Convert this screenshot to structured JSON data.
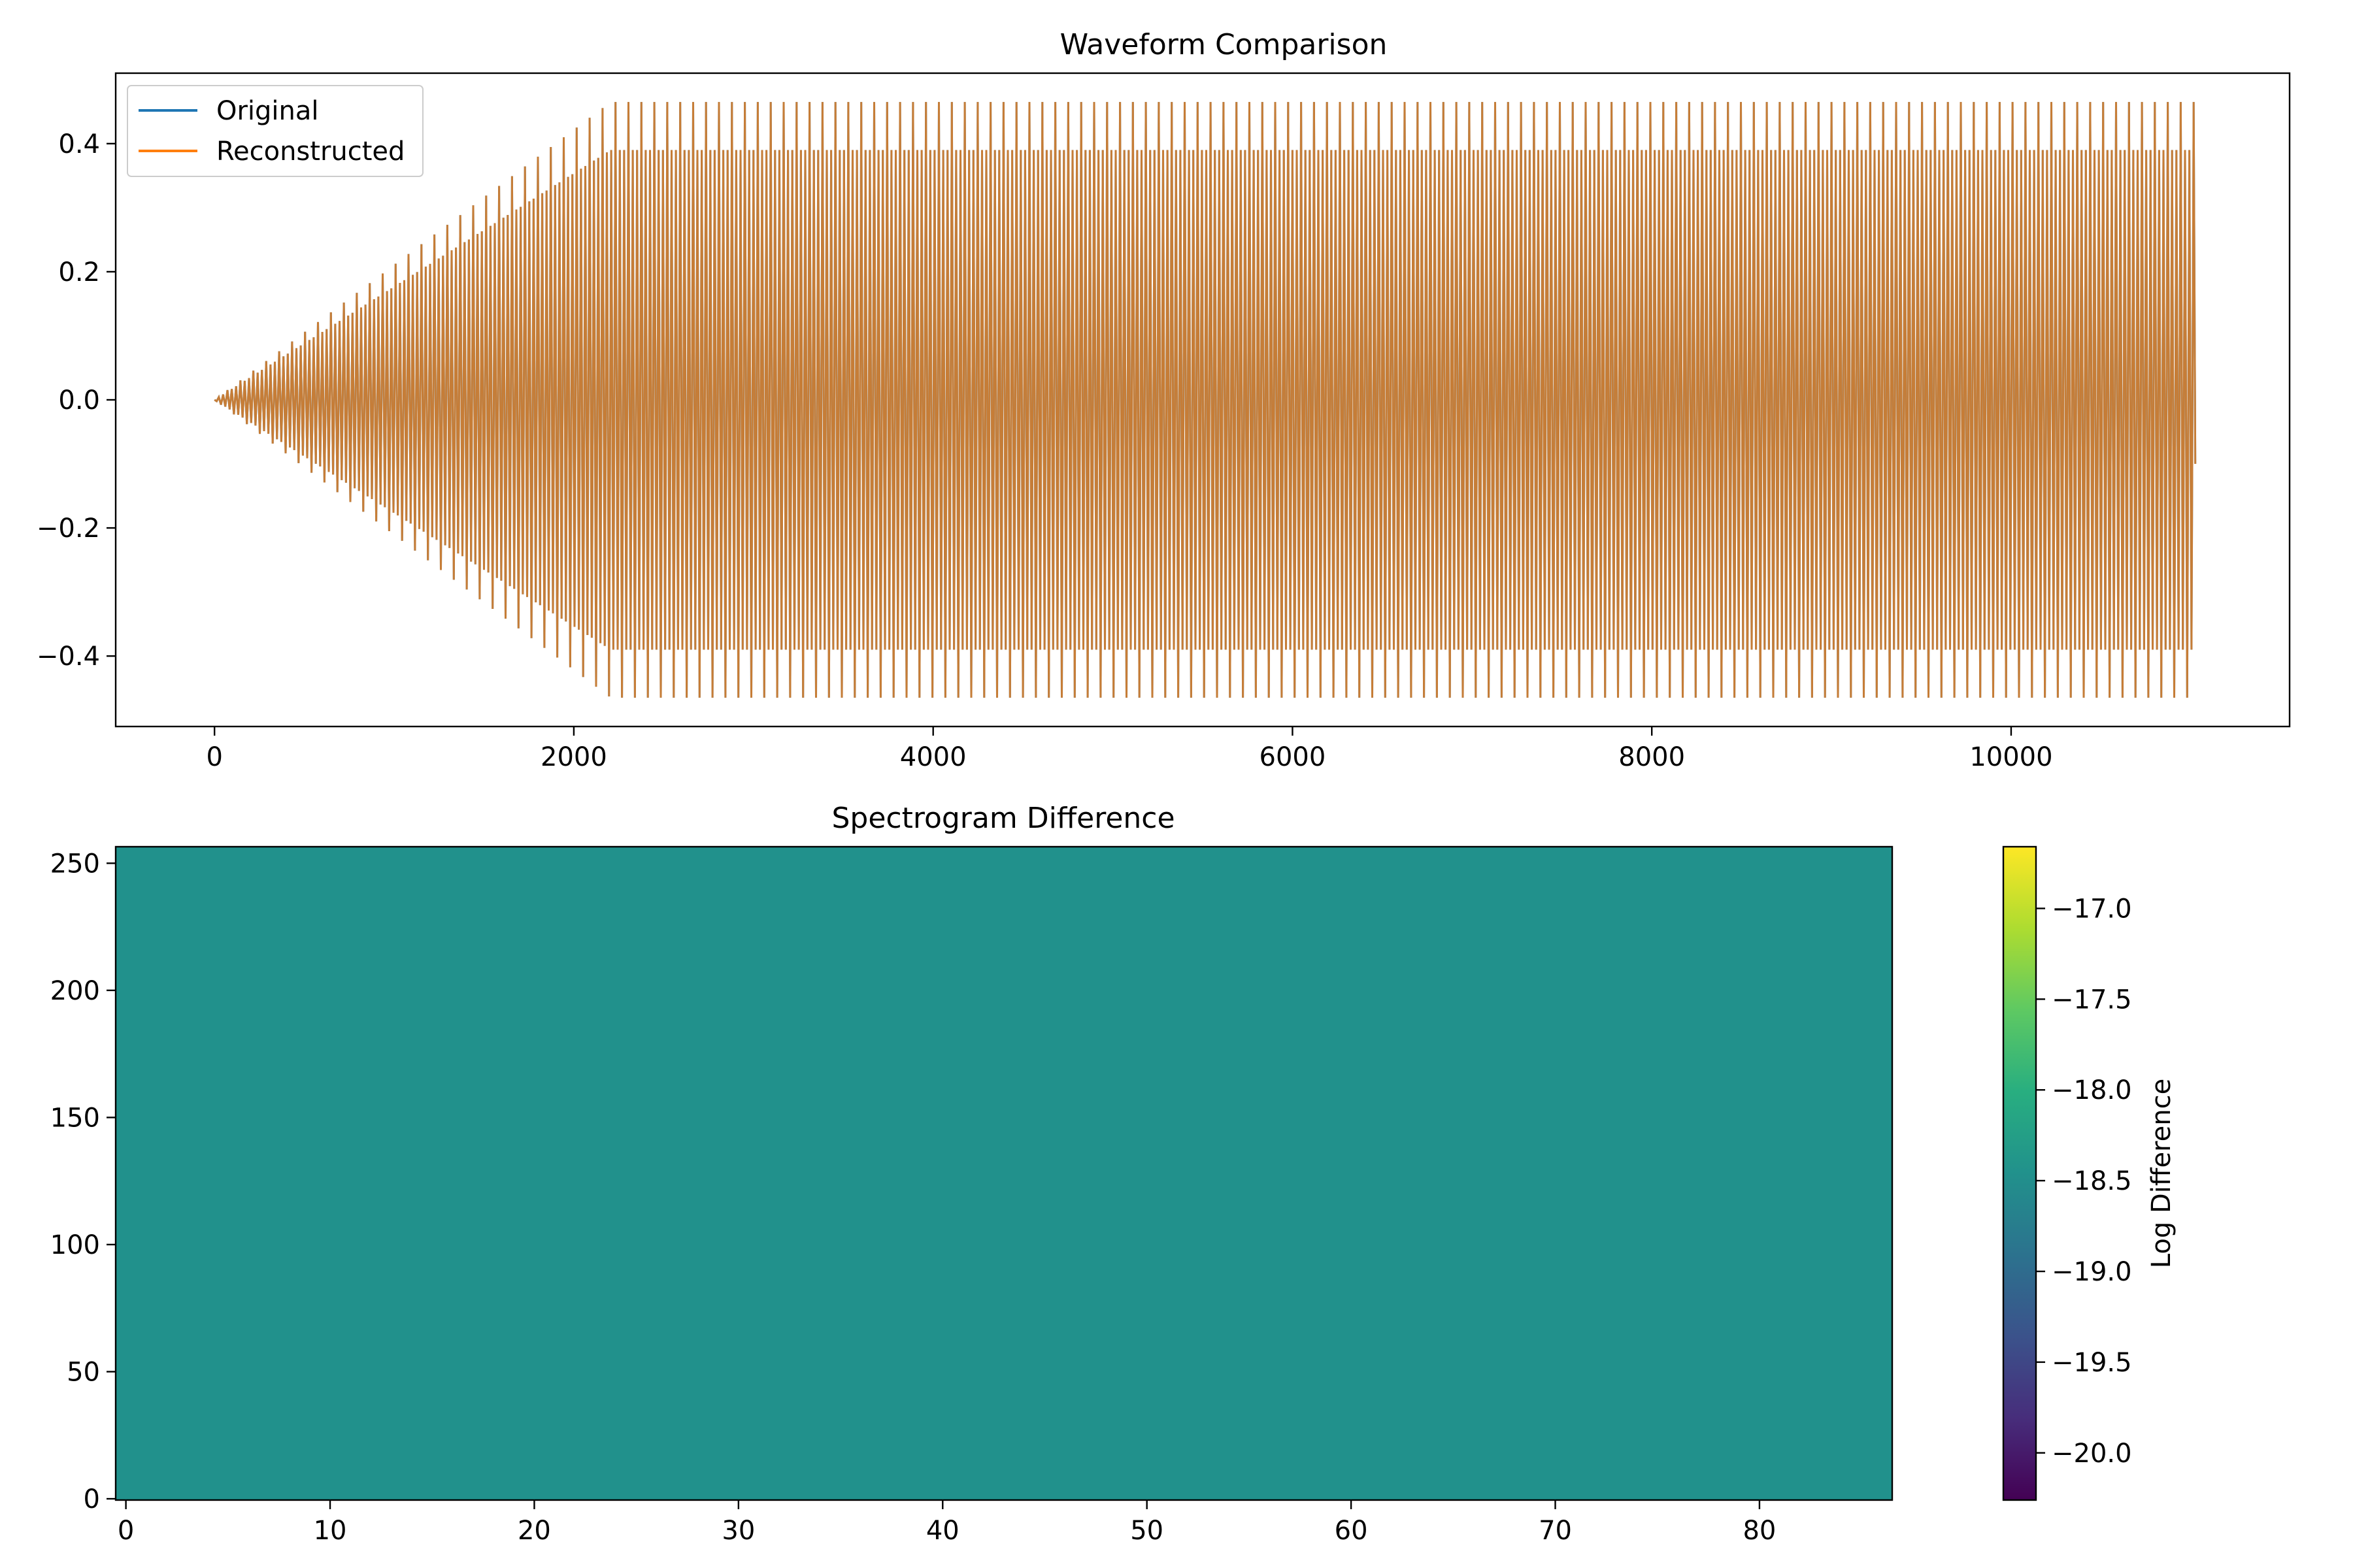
{
  "chart_data": [
    {
      "type": "line",
      "title": "Waveform Comparison",
      "xlabel": "",
      "ylabel": "",
      "xlim": [
        -550,
        11550
      ],
      "ylim": [
        -0.51,
        0.51
      ],
      "xticks": [
        0,
        2000,
        4000,
        6000,
        8000,
        10000
      ],
      "xtick_labels": [
        "0",
        "2000",
        "4000",
        "6000",
        "8000",
        "10000"
      ],
      "yticks": [
        -0.4,
        -0.2,
        0.0,
        0.2,
        0.4
      ],
      "ytick_labels": [
        "−0.4",
        "−0.2",
        "0.0",
        "0.2",
        "0.4"
      ],
      "grid": false,
      "legend": "upper-left",
      "series": [
        {
          "name": "Original",
          "color": "#1f77b4"
        },
        {
          "name": "Reconstructed",
          "color": "#ff7f0e"
        }
      ],
      "signal": {
        "n_samples": 11025,
        "ramp_end_sample": 2205,
        "peak_max": 0.465,
        "peak_min": -0.465,
        "steady_upper_low": 0.39,
        "steady_lower_high": -0.39,
        "end_value": -0.1
      }
    },
    {
      "type": "heatmap",
      "title": "Spectrogram Difference",
      "xlim": [
        -0.5,
        86.5
      ],
      "ylim": [
        -0.5,
        256.5
      ],
      "xticks": [
        0,
        10,
        20,
        30,
        40,
        50,
        60,
        70,
        80
      ],
      "xtick_labels": [
        "0",
        "10",
        "20",
        "30",
        "40",
        "50",
        "60",
        "70",
        "80"
      ],
      "yticks": [
        0,
        50,
        100,
        150,
        200,
        250
      ],
      "ytick_labels": [
        "0",
        "50",
        "100",
        "150",
        "200",
        "250"
      ],
      "fill_color": "#21918c",
      "colorbar": {
        "label": "Log Difference",
        "colormap": "viridis",
        "range": [
          -20.26,
          -16.66
        ],
        "ticks": [
          -17.0,
          -17.5,
          -18.0,
          -18.5,
          -19.0,
          -19.5,
          -20.0
        ],
        "tick_labels": [
          "−17.0",
          "−17.5",
          "−18.0",
          "−18.5",
          "−19.0",
          "−19.5",
          "−20.0"
        ]
      }
    }
  ]
}
